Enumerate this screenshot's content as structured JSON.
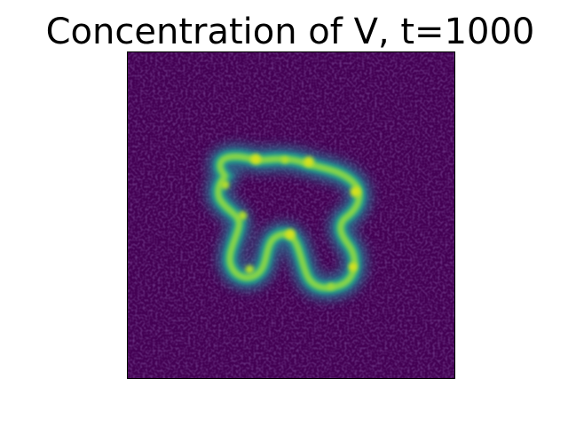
{
  "figure": {
    "title": "Concentration of V, t=1000"
  },
  "image": {
    "description_colormap": "viridis",
    "colors": {
      "background": "#440154",
      "noise_light": "#46226e",
      "halo": "#2b6f8e",
      "ring_outer": "#21918c",
      "ring_mid": "#35b779",
      "ring_inner": "#9fda3a",
      "hotspot": "#d6e21f"
    }
  }
}
